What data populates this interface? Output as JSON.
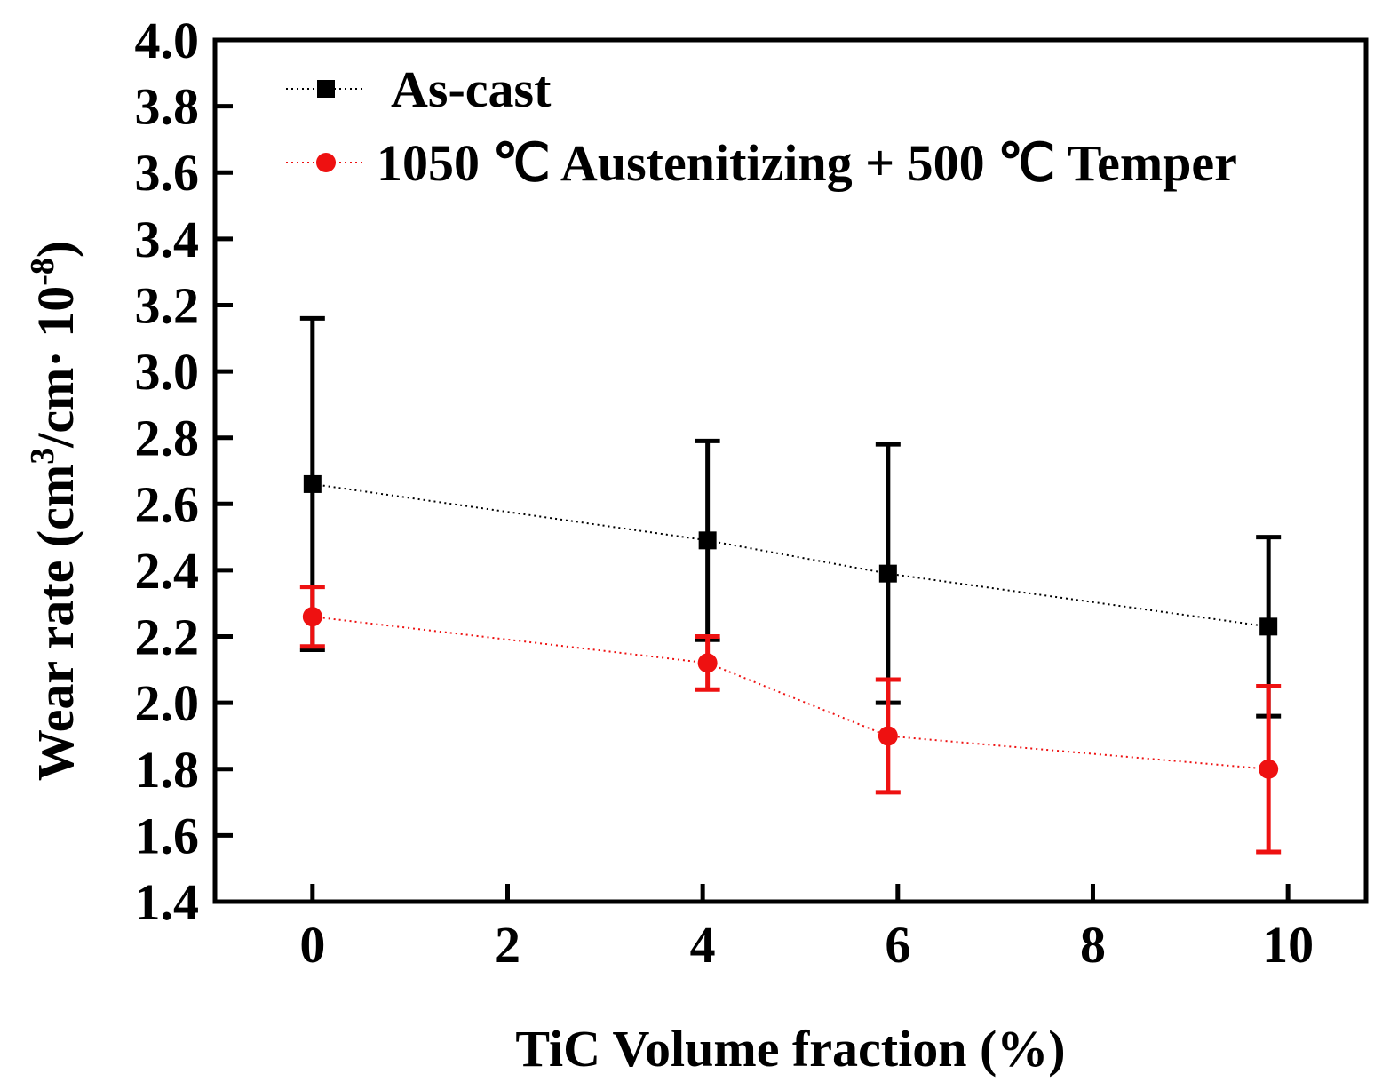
{
  "chart_data": {
    "type": "line",
    "xlabel": "TiC Volume fraction (%)",
    "ylabel": {
      "prefix": "Wear rate",
      "unit_open": "(cm",
      "unit_sup1": "3",
      "unit_mid": "/cm·",
      "unit_space": "10",
      "unit_sup2": "-8",
      "unit_close": ")"
    },
    "xlim": [
      -1,
      10.8
    ],
    "ylim": [
      1.4,
      4.0
    ],
    "x_ticks": [
      {
        "value": 0,
        "label": "0"
      },
      {
        "value": 2,
        "label": "2"
      },
      {
        "value": 4,
        "label": "4"
      },
      {
        "value": 6,
        "label": "6"
      },
      {
        "value": 8,
        "label": "8"
      },
      {
        "value": 10,
        "label": "10"
      }
    ],
    "y_ticks": [
      {
        "value": 1.4,
        "label": "1.4"
      },
      {
        "value": 1.6,
        "label": "1.6"
      },
      {
        "value": 1.8,
        "label": "1.8"
      },
      {
        "value": 2.0,
        "label": "2.0"
      },
      {
        "value": 2.2,
        "label": "2.2"
      },
      {
        "value": 2.4,
        "label": "2.4"
      },
      {
        "value": 2.6,
        "label": "2.6"
      },
      {
        "value": 2.8,
        "label": "2.8"
      },
      {
        "value": 3.0,
        "label": "3.0"
      },
      {
        "value": 3.2,
        "label": "3.2"
      },
      {
        "value": 3.4,
        "label": "3.4"
      },
      {
        "value": 3.6,
        "label": "3.6"
      },
      {
        "value": 3.8,
        "label": "3.8"
      },
      {
        "value": 4.0,
        "label": "4.0"
      }
    ],
    "legend_position": "top-left",
    "series": [
      {
        "name": "As-cast",
        "color": "#000000",
        "marker": "square",
        "points": [
          {
            "x": 0,
            "y": 2.66,
            "err_low": 2.16,
            "err_high": 3.16
          },
          {
            "x": 4.05,
            "y": 2.49,
            "err_low": 2.19,
            "err_high": 2.79
          },
          {
            "x": 5.9,
            "y": 2.39,
            "err_low": 2.0,
            "err_high": 2.78
          },
          {
            "x": 9.8,
            "y": 2.23,
            "err_low": 1.96,
            "err_high": 2.5
          }
        ]
      },
      {
        "name": "1050 ℃ Austenitizing + 500 ℃ Temper",
        "color": "#ee1111",
        "marker": "circle",
        "points": [
          {
            "x": 0,
            "y": 2.26,
            "err_low": 2.17,
            "err_high": 2.35
          },
          {
            "x": 4.05,
            "y": 2.12,
            "err_low": 2.04,
            "err_high": 2.2
          },
          {
            "x": 5.9,
            "y": 1.9,
            "err_low": 1.73,
            "err_high": 2.07
          },
          {
            "x": 9.8,
            "y": 1.8,
            "err_low": 1.55,
            "err_high": 2.05
          }
        ]
      }
    ]
  }
}
